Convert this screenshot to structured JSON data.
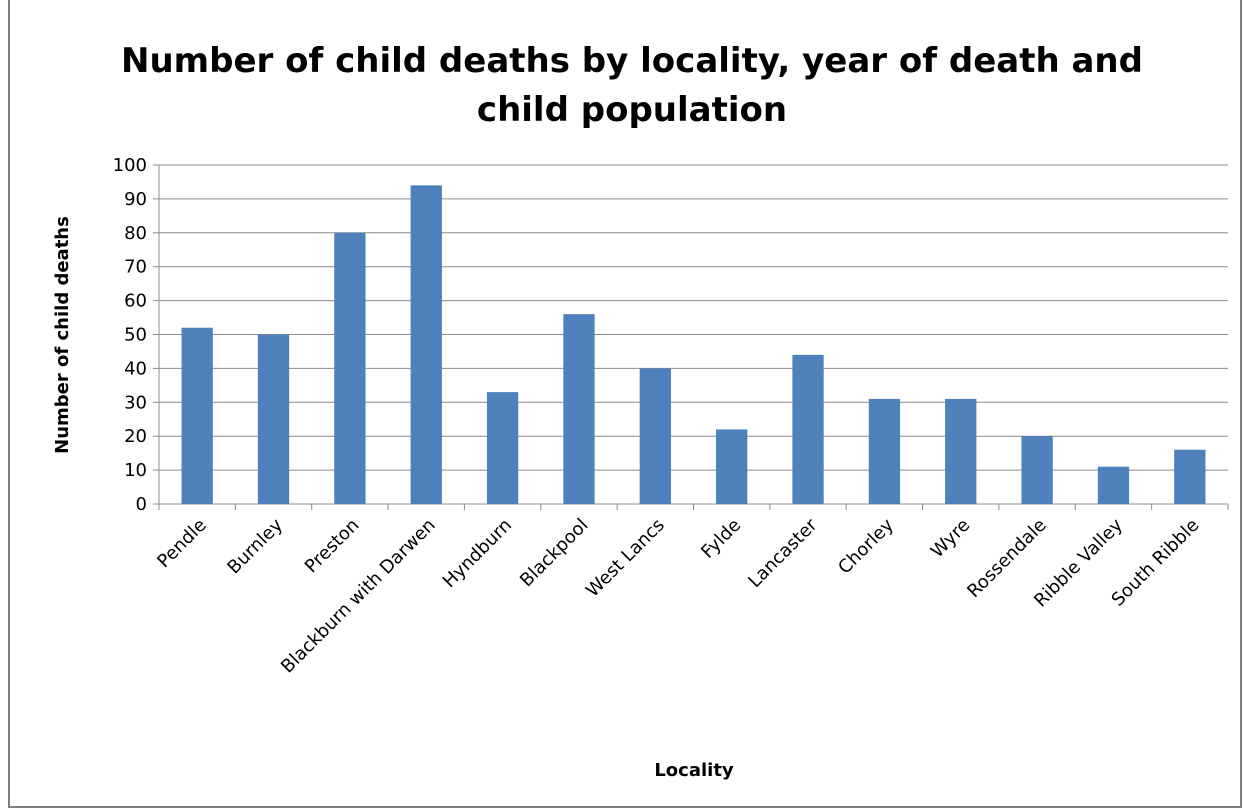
{
  "chart_data": {
    "type": "bar",
    "title_lines": [
      "Number of child deaths by locality, year of death and",
      "child population"
    ],
    "xlabel": "Locality",
    "ylabel": "Number of child deaths",
    "ylim": [
      0,
      100
    ],
    "y_ticks": [
      0,
      10,
      20,
      30,
      40,
      50,
      60,
      70,
      80,
      90,
      100
    ],
    "grid": true,
    "legend": "none",
    "bar_color": "#4F81BD",
    "categories": [
      "Pendle",
      "Burnley",
      "Preston",
      "Blackburn with Darwen",
      "Hyndburn",
      "Blackpool",
      "West Lancs",
      "Fylde",
      "Lancaster",
      "Chorley",
      "Wyre",
      "Rossendale",
      "Ribble Valley",
      "South Ribble"
    ],
    "values": [
      52,
      50,
      80,
      94,
      33,
      56,
      40,
      22,
      44,
      31,
      31,
      20,
      11,
      16
    ]
  }
}
